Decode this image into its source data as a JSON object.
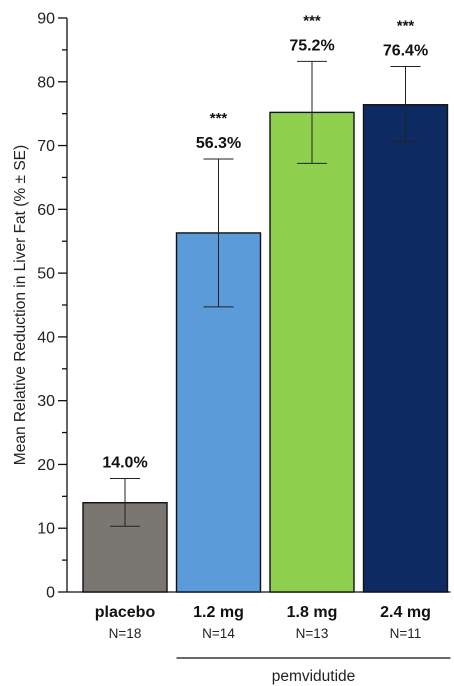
{
  "chart_data": {
    "type": "bar",
    "title": "",
    "ylabel": "Mean Relative Reduction in Liver Fat (% ± SE)",
    "xlabel": "",
    "ylim": [
      0,
      90
    ],
    "yticks": [
      0,
      10,
      20,
      30,
      40,
      50,
      60,
      70,
      80,
      90
    ],
    "yminor_step": 5,
    "categories": [
      "placebo",
      "1.2 mg",
      "1.8 mg",
      "2.4 mg"
    ],
    "n_labels": [
      "N=18",
      "N=14",
      "N=13",
      "N=11"
    ],
    "values": [
      14.0,
      56.3,
      75.2,
      76.4
    ],
    "value_labels": [
      "14.0%",
      "56.3%",
      "75.2%",
      "76.4%"
    ],
    "error_low": [
      10.3,
      44.7,
      67.2,
      70.6
    ],
    "error_high": [
      17.8,
      67.9,
      83.2,
      82.4
    ],
    "significance": [
      "",
      "***",
      "***",
      "***"
    ],
    "colors": [
      "#7a7672",
      "#5b9bd9",
      "#8fd14f",
      "#0e2a63"
    ],
    "grid": false,
    "group_label": {
      "text": "pemvidutide",
      "categories": [
        "1.2 mg",
        "1.8 mg",
        "2.4 mg"
      ]
    }
  }
}
